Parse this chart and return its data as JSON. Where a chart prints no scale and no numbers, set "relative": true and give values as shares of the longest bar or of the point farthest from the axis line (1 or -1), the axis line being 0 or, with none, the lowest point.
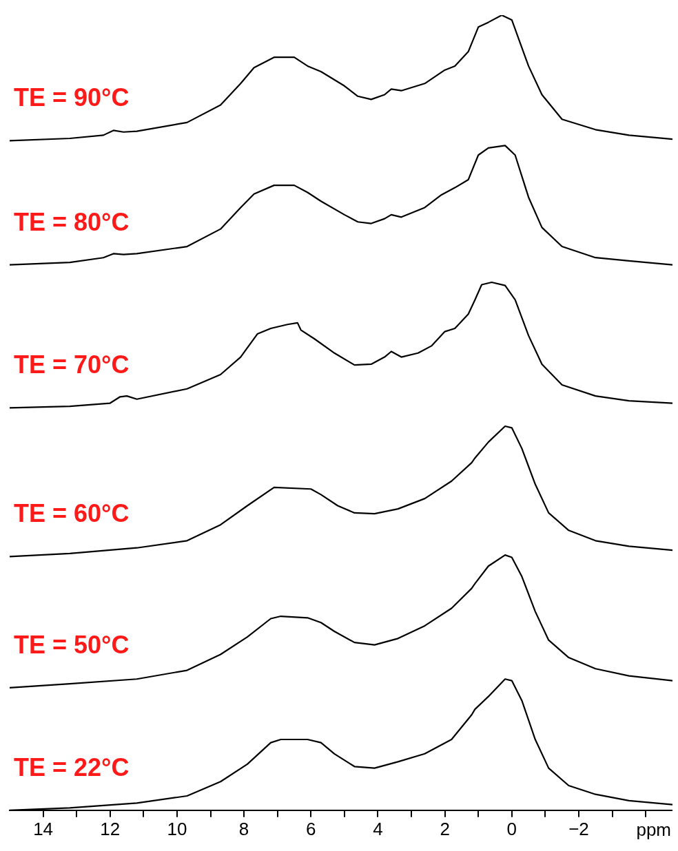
{
  "chart_data": {
    "type": "line",
    "relative": true,
    "xlabel": "ppm",
    "legend": false,
    "marker": "none",
    "line_style": "solid",
    "xlim": [
      15,
      -4.8
    ],
    "xticks": [
      14,
      {
        "value": 13,
        "label": null
      },
      12,
      {
        "value": 11,
        "label": null
      },
      10,
      {
        "value": 9,
        "label": null
      },
      8,
      {
        "value": 7,
        "label": null
      },
      6,
      {
        "value": 5,
        "label": null
      },
      4,
      {
        "value": 3,
        "label": null
      },
      2,
      {
        "value": 1,
        "label": null
      },
      0,
      {
        "value": -1,
        "label": null
      },
      {
        "value": -2,
        "label": "−2"
      },
      {
        "value": -3,
        "label": null
      },
      {
        "value": -4,
        "label": null
      }
    ],
    "series": [
      {
        "name": "TE = 90°C",
        "color": "#000000",
        "x": [
          15.0,
          13.2,
          12.2,
          11.9,
          11.6,
          11.2,
          9.7,
          8.7,
          8.1,
          7.7,
          7.1,
          6.5,
          6.1,
          5.7,
          5.0,
          4.6,
          4.2,
          3.8,
          3.6,
          3.3,
          2.6,
          2.0,
          1.7,
          1.3,
          1.0,
          0.7,
          0.3,
          0.0,
          -0.5,
          -0.9,
          -1.5,
          -2.5,
          -3.5,
          -4.8
        ],
        "values": [
          0.842,
          0.845,
          0.849,
          0.855,
          0.853,
          0.854,
          0.865,
          0.887,
          0.914,
          0.934,
          0.947,
          0.947,
          0.936,
          0.929,
          0.911,
          0.898,
          0.894,
          0.9,
          0.907,
          0.905,
          0.914,
          0.931,
          0.936,
          0.954,
          0.985,
          0.991,
          1,
          0.994,
          0.936,
          0.9,
          0.869,
          0.856,
          0.849,
          0.844
        ]
      },
      {
        "name": "TE = 80°C",
        "color": "#000000",
        "x": [
          15.0,
          13.2,
          12.2,
          11.9,
          11.6,
          11.2,
          9.7,
          8.7,
          8.1,
          7.7,
          7.1,
          6.5,
          6.1,
          5.7,
          5.0,
          4.6,
          4.2,
          3.8,
          3.6,
          3.3,
          2.6,
          2.1,
          1.7,
          1.3,
          1.0,
          0.7,
          0.2,
          -0.1,
          -0.5,
          -0.9,
          -1.5,
          -2.5,
          -3.5,
          -4.8
        ],
        "values": [
          0.686,
          0.689,
          0.695,
          0.7,
          0.699,
          0.7,
          0.709,
          0.731,
          0.758,
          0.775,
          0.786,
          0.786,
          0.777,
          0.766,
          0.749,
          0.74,
          0.738,
          0.744,
          0.749,
          0.746,
          0.758,
          0.774,
          0.783,
          0.793,
          0.824,
          0.833,
          0.836,
          0.824,
          0.771,
          0.733,
          0.709,
          0.695,
          0.691,
          0.686
        ]
      },
      {
        "name": "TE = 70°C",
        "color": "#000000",
        "x": [
          15.0,
          13.2,
          12.0,
          11.7,
          11.5,
          11.2,
          9.7,
          8.7,
          8.1,
          7.6,
          7.2,
          6.7,
          6.4,
          6.3,
          5.9,
          5.3,
          4.7,
          4.2,
          3.8,
          3.6,
          3.3,
          2.8,
          2.4,
          2.0,
          1.7,
          1.3,
          1.1,
          0.9,
          0.6,
          0.2,
          -0.1,
          -0.5,
          -0.9,
          -1.5,
          -2.5,
          -3.5,
          -4.8
        ],
        "values": [
          0.506,
          0.508,
          0.512,
          0.52,
          0.521,
          0.517,
          0.53,
          0.548,
          0.57,
          0.599,
          0.606,
          0.611,
          0.613,
          0.604,
          0.593,
          0.575,
          0.56,
          0.561,
          0.57,
          0.577,
          0.57,
          0.575,
          0.584,
          0.602,
          0.606,
          0.624,
          0.642,
          0.661,
          0.664,
          0.66,
          0.642,
          0.597,
          0.561,
          0.535,
          0.521,
          0.515,
          0.512
        ]
      },
      {
        "name": "TE = 60°C",
        "color": "#000000",
        "x": [
          15.0,
          13.2,
          11.2,
          9.7,
          8.7,
          7.9,
          7.1,
          6.0,
          5.7,
          5.2,
          4.7,
          4.1,
          3.4,
          2.6,
          1.8,
          1.2,
          1.1,
          0.7,
          0.2,
          0.0,
          -0.3,
          -0.7,
          -1.1,
          -1.7,
          -2.5,
          -3.5,
          -4.8
        ],
        "values": [
          0.319,
          0.323,
          0.33,
          0.339,
          0.359,
          0.383,
          0.406,
          0.404,
          0.397,
          0.383,
          0.374,
          0.373,
          0.379,
          0.392,
          0.414,
          0.437,
          0.443,
          0.463,
          0.483,
          0.481,
          0.455,
          0.41,
          0.374,
          0.352,
          0.339,
          0.332,
          0.327
        ]
      },
      {
        "name": "TE = 50°C",
        "color": "#000000",
        "x": [
          15.0,
          13.2,
          11.2,
          9.7,
          8.7,
          7.9,
          7.2,
          6.9,
          6.1,
          5.7,
          5.3,
          4.7,
          4.1,
          3.4,
          2.6,
          1.8,
          1.2,
          1.1,
          0.7,
          0.2,
          0.0,
          -0.3,
          -0.7,
          -1.1,
          -1.7,
          -2.5,
          -3.5,
          -4.8
        ],
        "values": [
          0.154,
          0.159,
          0.165,
          0.176,
          0.196,
          0.218,
          0.241,
          0.244,
          0.242,
          0.236,
          0.225,
          0.211,
          0.208,
          0.216,
          0.232,
          0.254,
          0.279,
          0.285,
          0.307,
          0.321,
          0.318,
          0.294,
          0.25,
          0.214,
          0.192,
          0.178,
          0.169,
          0.163
        ]
      },
      {
        "name": "TE = 22°C",
        "color": "#000000",
        "x": [
          15.0,
          13.2,
          11.2,
          9.7,
          8.7,
          7.9,
          7.2,
          6.9,
          6.1,
          5.7,
          5.3,
          4.7,
          4.1,
          3.4,
          2.6,
          1.8,
          1.2,
          1.1,
          0.7,
          0.2,
          0.0,
          -0.3,
          -0.7,
          -1.1,
          -1.7,
          -2.5,
          -3.5,
          -4.8
        ],
        "values": [
          0,
          0.003,
          0.009,
          0.018,
          0.036,
          0.058,
          0.085,
          0.089,
          0.089,
          0.085,
          0.071,
          0.055,
          0.053,
          0.061,
          0.071,
          0.089,
          0.12,
          0.127,
          0.143,
          0.165,
          0.163,
          0.138,
          0.089,
          0.053,
          0.031,
          0.02,
          0.012,
          0.007
        ]
      }
    ]
  }
}
